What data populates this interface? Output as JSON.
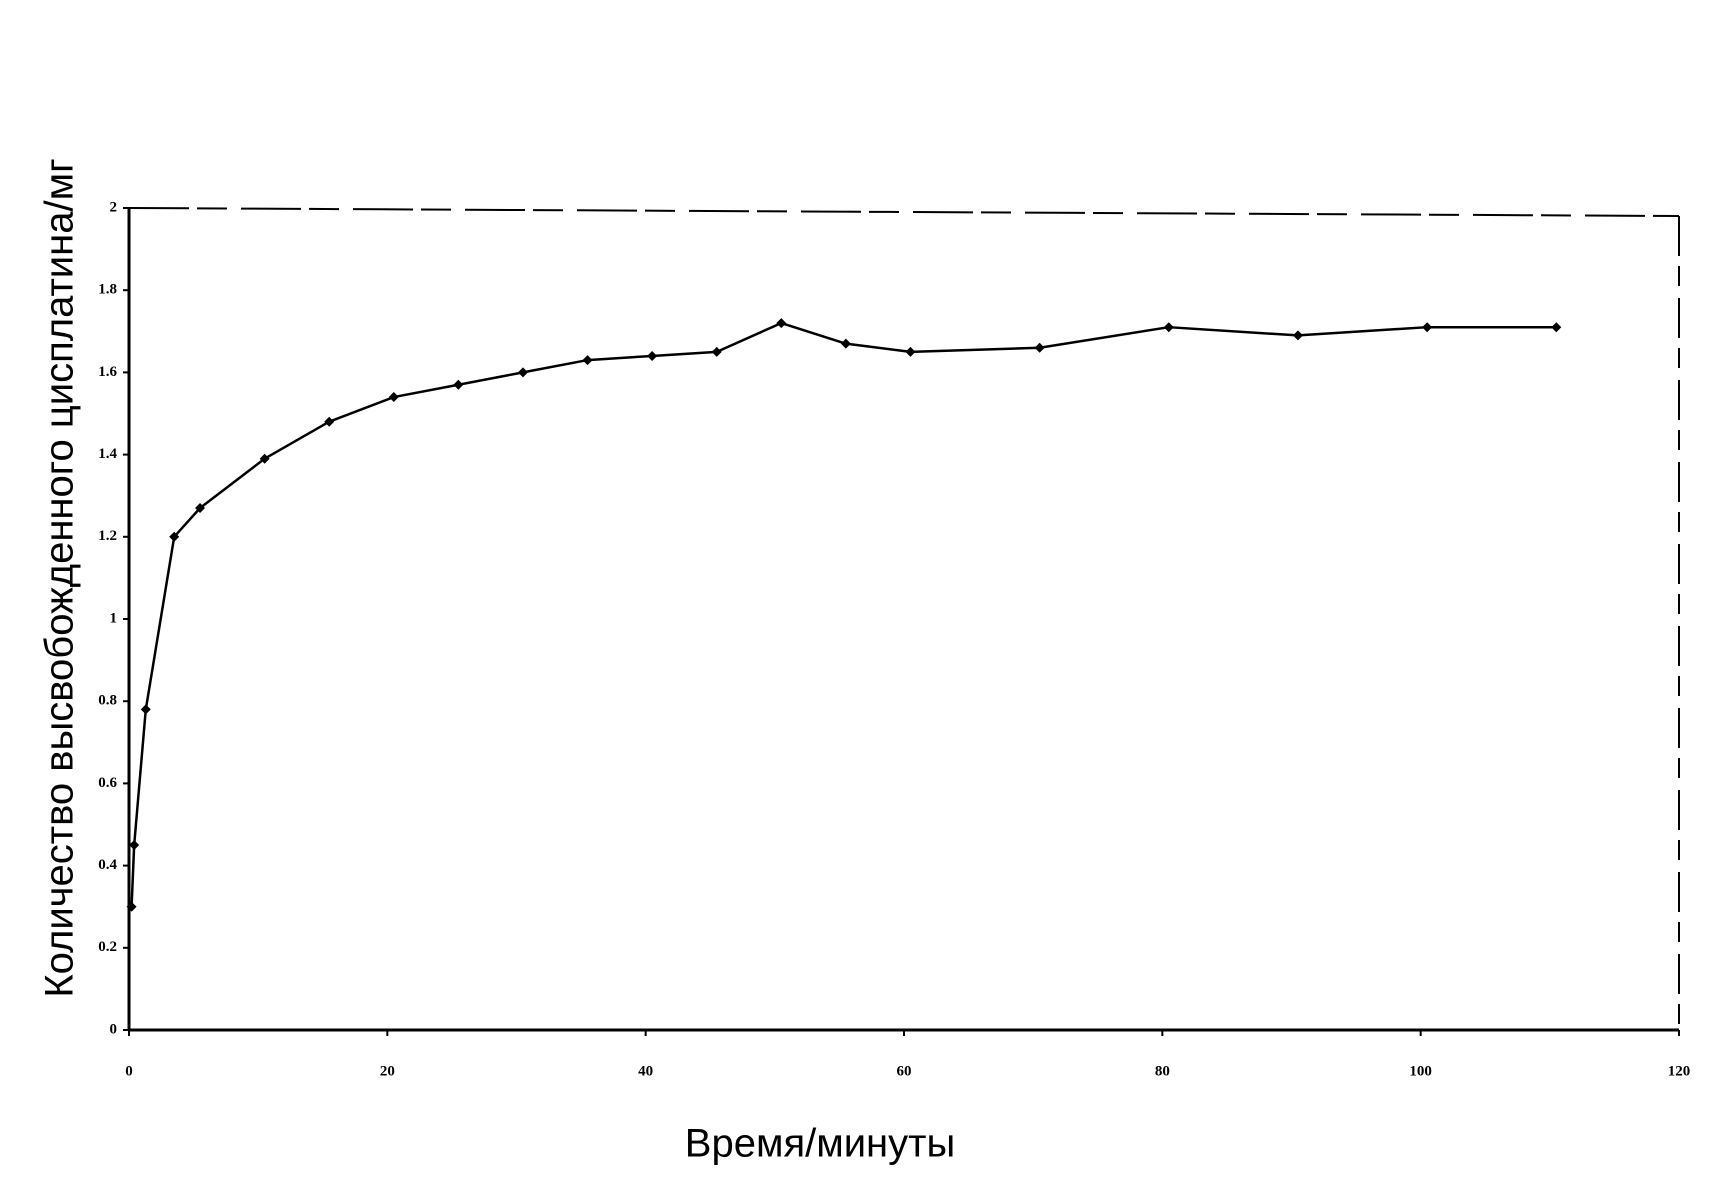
{
  "chart_data": {
    "type": "line",
    "x_label": "Время/минуты",
    "y_label": "Количество высвобожденного цисплатина/мг",
    "x": [
      0.2,
      0.4,
      1.3,
      3.5,
      5.5,
      10.5,
      15.5,
      20.5,
      25.5,
      30.5,
      35.5,
      40.5,
      45.5,
      50.5,
      55.5,
      60.5,
      70.5,
      80.5,
      90.5,
      100.5,
      110.5
    ],
    "series": [
      {
        "color": "#000000",
        "values": [
          0.3,
          0.45,
          0.78,
          1.2,
          1.27,
          1.39,
          1.48,
          1.54,
          1.57,
          1.6,
          1.63,
          1.64,
          1.65,
          1.72,
          1.67,
          1.65,
          1.66,
          1.71,
          1.69,
          1.71,
          1.71
        ]
      }
    ],
    "xlim": [
      0,
      120
    ],
    "xticks": [
      0,
      20,
      40,
      60,
      80,
      100,
      120
    ],
    "ylim": [
      0,
      2
    ],
    "yticks": [
      0,
      0.2,
      0.4,
      0.6,
      0.8,
      1,
      1.2,
      1.4,
      1.6,
      1.8,
      2
    ],
    "grid": false
  }
}
